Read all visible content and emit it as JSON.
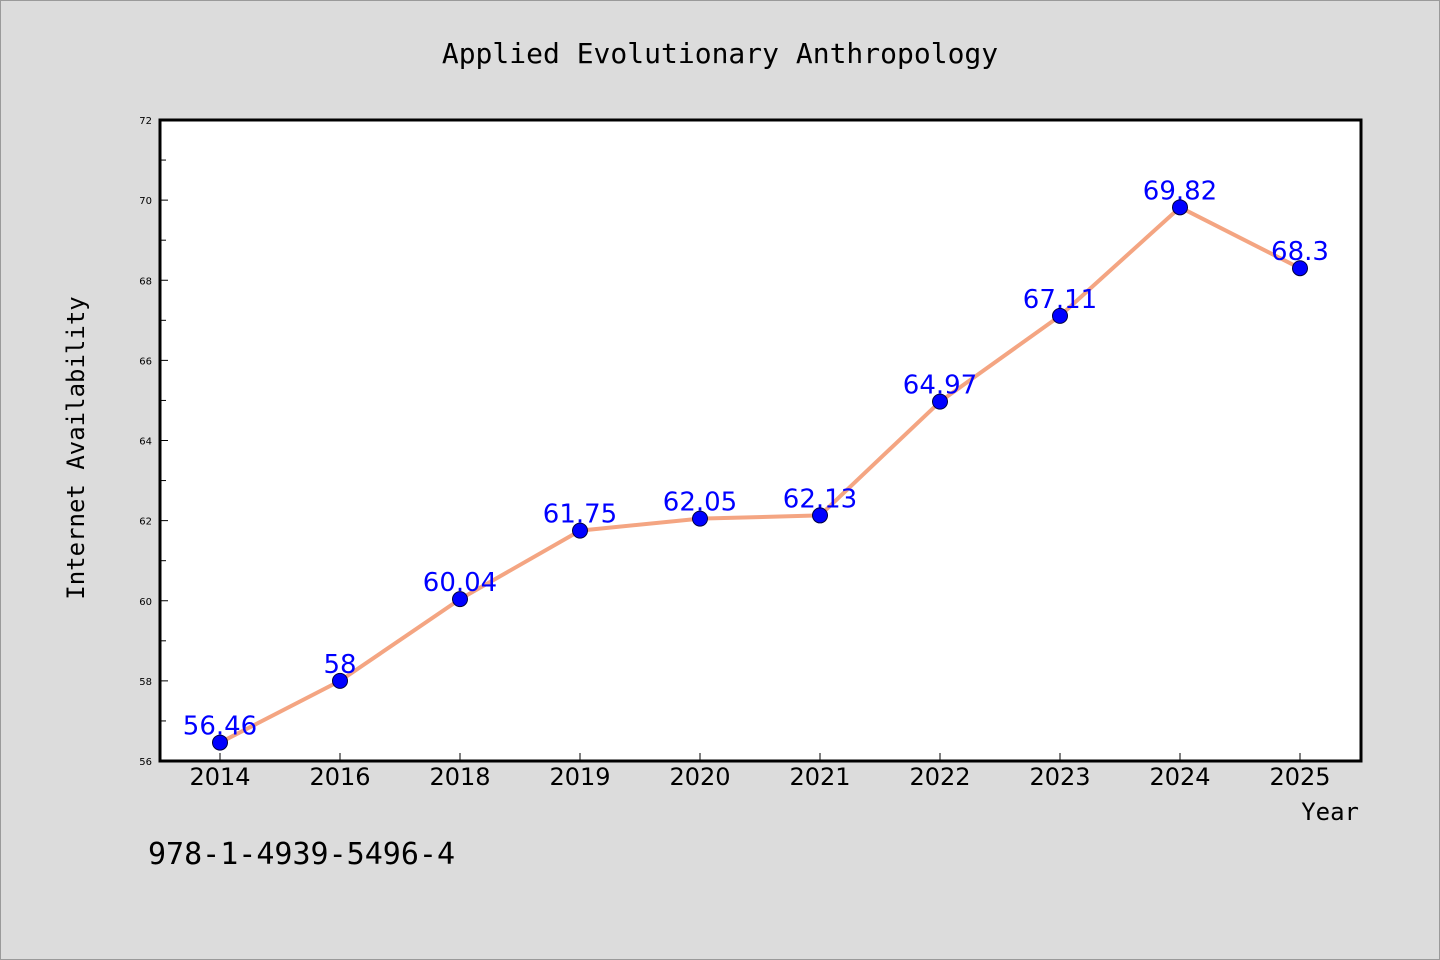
{
  "chart_data": {
    "type": "line",
    "title": "Applied Evolutionary Anthropology",
    "xlabel": "Year",
    "ylabel": "Internet Availability",
    "categories": [
      "2014",
      "2016",
      "2018",
      "2019",
      "2020",
      "2021",
      "2022",
      "2023",
      "2024",
      "2025"
    ],
    "series": [
      {
        "values": [
          56.46,
          58,
          60.04,
          61.75,
          62.05,
          62.13,
          64.97,
          67.11,
          69.82,
          68.3
        ],
        "labels": [
          "56.46",
          "58",
          "60.04",
          "61.75",
          "62.05",
          "62.13",
          "64.97",
          "67.11",
          "69.82",
          "68.3"
        ],
        "line_color": "#f4a582",
        "marker_color": "#0000ff"
      }
    ],
    "ylim": [
      56,
      72
    ],
    "yticks": [
      "56",
      "58",
      "60",
      "62",
      "64",
      "66",
      "68",
      "70",
      "72"
    ],
    "grid": false,
    "legend": "none",
    "background": "#dcdcdc",
    "plot_background": "#ffffff"
  },
  "footer": {
    "text": "978-1-4939-5496-4"
  }
}
